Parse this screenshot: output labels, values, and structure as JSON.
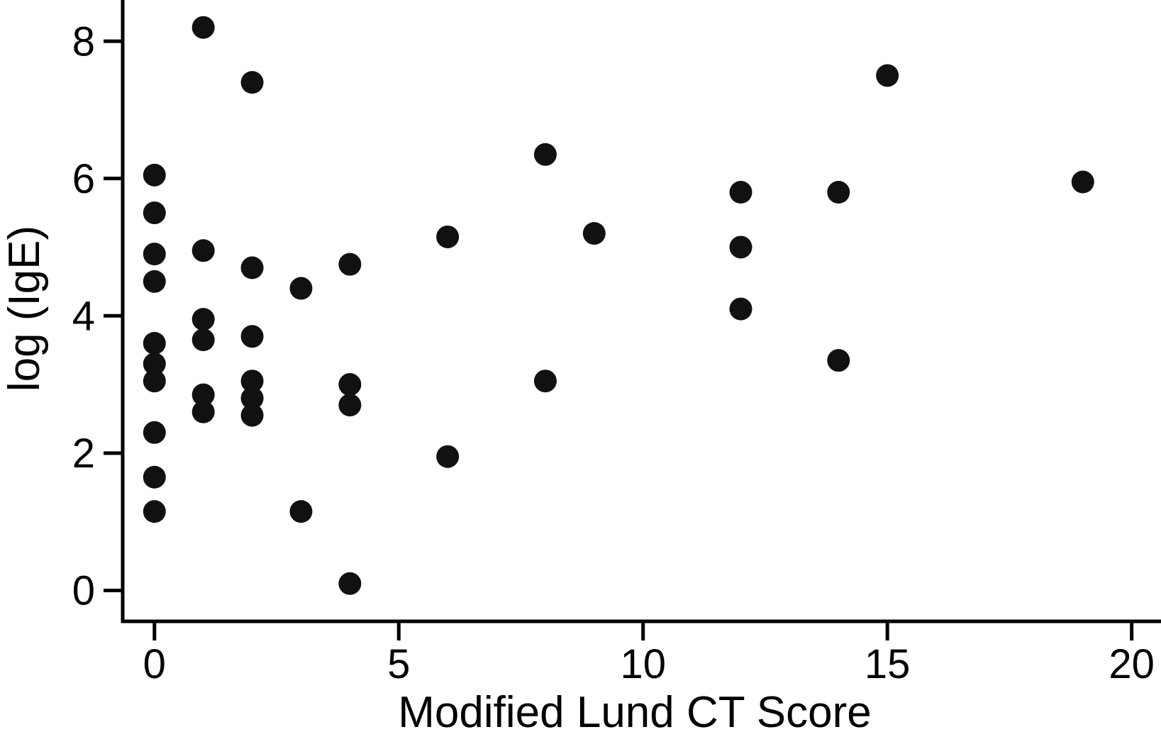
{
  "figure": {
    "background": "#ffffff",
    "axis_color": "#000000",
    "marker_color": "#111111"
  },
  "chart_data": {
    "type": "scatter",
    "title": "",
    "xlabel": "Modified Lund CT Score",
    "ylabel": "log (IgE)",
    "xlim": [
      -0.65,
      20.6
    ],
    "ylim": [
      -0.45,
      8.6
    ],
    "x_ticks": [
      0,
      5,
      10,
      15,
      20
    ],
    "y_ticks": [
      0,
      2,
      4,
      6,
      8
    ],
    "grid": false,
    "legend": "none",
    "marker": {
      "shape": "circle",
      "radius_px": 16
    },
    "points": [
      {
        "x": 0,
        "y": 6.05
      },
      {
        "x": 0,
        "y": 5.5
      },
      {
        "x": 0,
        "y": 4.9
      },
      {
        "x": 0,
        "y": 4.5
      },
      {
        "x": 0,
        "y": 3.6
      },
      {
        "x": 0,
        "y": 3.3
      },
      {
        "x": 0,
        "y": 3.05
      },
      {
        "x": 0,
        "y": 2.3
      },
      {
        "x": 0,
        "y": 1.65
      },
      {
        "x": 0,
        "y": 1.15
      },
      {
        "x": 1,
        "y": 8.2
      },
      {
        "x": 1,
        "y": 4.95
      },
      {
        "x": 1,
        "y": 3.95
      },
      {
        "x": 1,
        "y": 3.65
      },
      {
        "x": 1,
        "y": 2.85
      },
      {
        "x": 1,
        "y": 2.6
      },
      {
        "x": 2,
        "y": 7.4
      },
      {
        "x": 2,
        "y": 4.7
      },
      {
        "x": 2,
        "y": 3.7
      },
      {
        "x": 2,
        "y": 3.05
      },
      {
        "x": 2,
        "y": 2.8
      },
      {
        "x": 2,
        "y": 2.55
      },
      {
        "x": 3,
        "y": 4.4
      },
      {
        "x": 3,
        "y": 1.15
      },
      {
        "x": 4,
        "y": 4.75
      },
      {
        "x": 4,
        "y": 3.0
      },
      {
        "x": 4,
        "y": 2.7
      },
      {
        "x": 4,
        "y": 0.1
      },
      {
        "x": 6,
        "y": 5.15
      },
      {
        "x": 6,
        "y": 1.95
      },
      {
        "x": 8,
        "y": 6.35
      },
      {
        "x": 8,
        "y": 3.05
      },
      {
        "x": 9,
        "y": 5.2
      },
      {
        "x": 12,
        "y": 5.8
      },
      {
        "x": 12,
        "y": 5.0
      },
      {
        "x": 12,
        "y": 4.1
      },
      {
        "x": 14,
        "y": 5.8
      },
      {
        "x": 14,
        "y": 3.35
      },
      {
        "x": 15,
        "y": 7.5
      },
      {
        "x": 19,
        "y": 5.95
      }
    ]
  }
}
